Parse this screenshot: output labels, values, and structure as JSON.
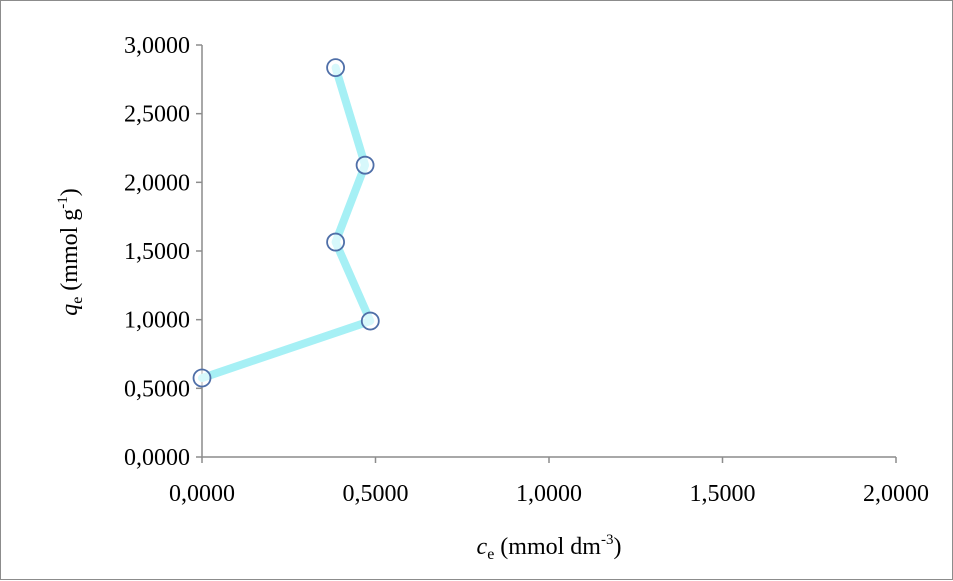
{
  "chart_data": {
    "type": "line",
    "title": "",
    "xlabel": {
      "symbol": "c",
      "subscript": "e",
      "unit_prefix": " (mmol dm",
      "unit_exponent": "-3",
      "unit_suffix": ")"
    },
    "ylabel": {
      "symbol": "q",
      "subscript": "e",
      "unit_prefix": " (mmol g",
      "unit_exponent": "-1",
      "unit_suffix": ")"
    },
    "xlim": [
      0,
      2
    ],
    "ylim": [
      0,
      3
    ],
    "xticks": [
      0,
      0.5,
      1,
      1.5,
      2
    ],
    "yticks": [
      0,
      0.5,
      1,
      1.5,
      2,
      2.5,
      3
    ],
    "xtick_labels": [
      "0,0000",
      "0,5000",
      "1,0000",
      "1,5000",
      "2,0000"
    ],
    "ytick_labels": [
      "0,0000",
      "0,5000",
      "1,0000",
      "1,5000",
      "2,0000",
      "2,5000",
      "3,0000"
    ],
    "grid": false,
    "series": [
      {
        "x": [
          0.0,
          0.485,
          0.385,
          0.47,
          0.385
        ],
        "y": [
          0.575,
          0.99,
          1.565,
          2.125,
          2.835
        ],
        "line_color": "#a6f0f5",
        "marker": "circle",
        "marker_edge_color": "#4f6fa8",
        "marker_face_color": "#ffffff"
      }
    ]
  },
  "colors": {
    "axis": "#8c8c8c",
    "frame": "#8c8c8c"
  }
}
